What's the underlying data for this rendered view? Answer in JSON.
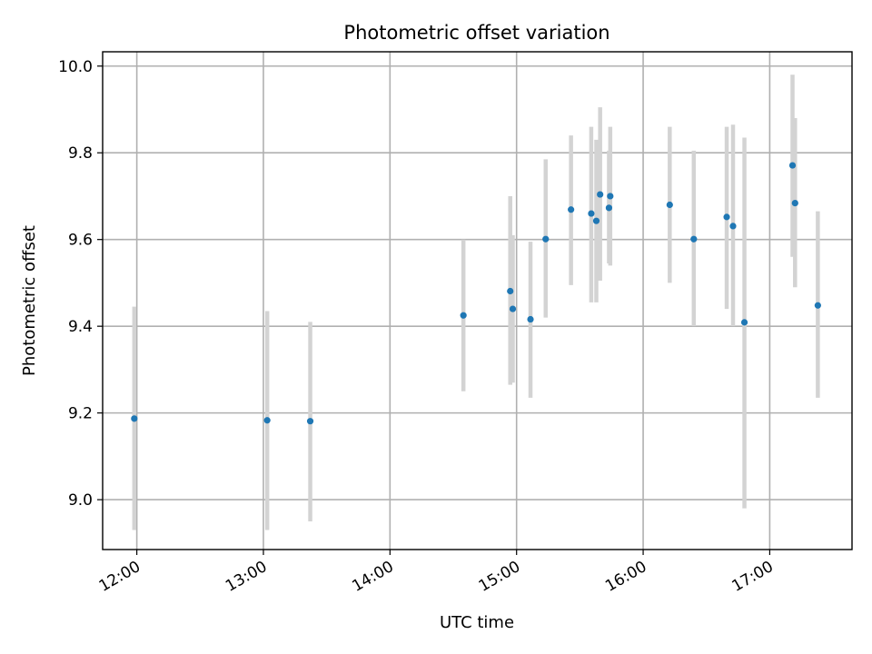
{
  "chart_data": {
    "type": "scatter",
    "title": "Photometric offset variation",
    "xlabel": "UTC time",
    "ylabel": "Photometric offset",
    "x_unit": "hours UTC",
    "xlim": [
      11.73,
      17.65
    ],
    "ylim": [
      8.885,
      10.033
    ],
    "grid": true,
    "x_ticks": [
      {
        "value": 12,
        "label": "12:00"
      },
      {
        "value": 13,
        "label": "13:00"
      },
      {
        "value": 14,
        "label": "14:00"
      },
      {
        "value": 15,
        "label": "15:00"
      },
      {
        "value": 16,
        "label": "16:00"
      },
      {
        "value": 17,
        "label": "17:00"
      }
    ],
    "y_ticks": [
      {
        "value": 9.0,
        "label": "9.0"
      },
      {
        "value": 9.2,
        "label": "9.2"
      },
      {
        "value": 9.4,
        "label": "9.4"
      },
      {
        "value": 9.6,
        "label": "9.6"
      },
      {
        "value": 9.8,
        "label": "9.8"
      },
      {
        "value": 10.0,
        "label": "10.0"
      }
    ],
    "series": [
      {
        "name": "Photometric offset",
        "marker_color": "#1f77b4",
        "errorbar_color": "#d3d3d3",
        "points": [
          {
            "x": 11.98,
            "y": 9.187,
            "ylow": 8.93,
            "yhigh": 9.445
          },
          {
            "x": 13.03,
            "y": 9.183,
            "ylow": 8.93,
            "yhigh": 9.435
          },
          {
            "x": 13.37,
            "y": 9.181,
            "ylow": 8.95,
            "yhigh": 9.41
          },
          {
            "x": 14.58,
            "y": 9.425,
            "ylow": 9.25,
            "yhigh": 9.6
          },
          {
            "x": 14.95,
            "y": 9.481,
            "ylow": 9.265,
            "yhigh": 9.7
          },
          {
            "x": 14.97,
            "y": 9.44,
            "ylow": 9.27,
            "yhigh": 9.61
          },
          {
            "x": 15.11,
            "y": 9.416,
            "ylow": 9.235,
            "yhigh": 9.595
          },
          {
            "x": 15.23,
            "y": 9.601,
            "ylow": 9.42,
            "yhigh": 9.785
          },
          {
            "x": 15.43,
            "y": 9.669,
            "ylow": 9.495,
            "yhigh": 9.84
          },
          {
            "x": 15.59,
            "y": 9.66,
            "ylow": 9.455,
            "yhigh": 9.86
          },
          {
            "x": 15.63,
            "y": 9.643,
            "ylow": 9.455,
            "yhigh": 9.83
          },
          {
            "x": 15.66,
            "y": 9.704,
            "ylow": 9.505,
            "yhigh": 9.905
          },
          {
            "x": 15.73,
            "y": 9.673,
            "ylow": 9.545,
            "yhigh": 9.805
          },
          {
            "x": 15.74,
            "y": 9.7,
            "ylow": 9.54,
            "yhigh": 9.86
          },
          {
            "x": 16.21,
            "y": 9.68,
            "ylow": 9.5,
            "yhigh": 9.86
          },
          {
            "x": 16.4,
            "y": 9.601,
            "ylow": 9.4,
            "yhigh": 9.805
          },
          {
            "x": 16.66,
            "y": 9.652,
            "ylow": 9.44,
            "yhigh": 9.86
          },
          {
            "x": 16.71,
            "y": 9.631,
            "ylow": 9.4,
            "yhigh": 9.865
          },
          {
            "x": 16.8,
            "y": 9.409,
            "ylow": 8.98,
            "yhigh": 9.835
          },
          {
            "x": 17.18,
            "y": 9.771,
            "ylow": 9.56,
            "yhigh": 9.98
          },
          {
            "x": 17.2,
            "y": 9.684,
            "ylow": 9.49,
            "yhigh": 9.88
          },
          {
            "x": 17.38,
            "y": 9.448,
            "ylow": 9.235,
            "yhigh": 9.665
          }
        ]
      }
    ]
  }
}
